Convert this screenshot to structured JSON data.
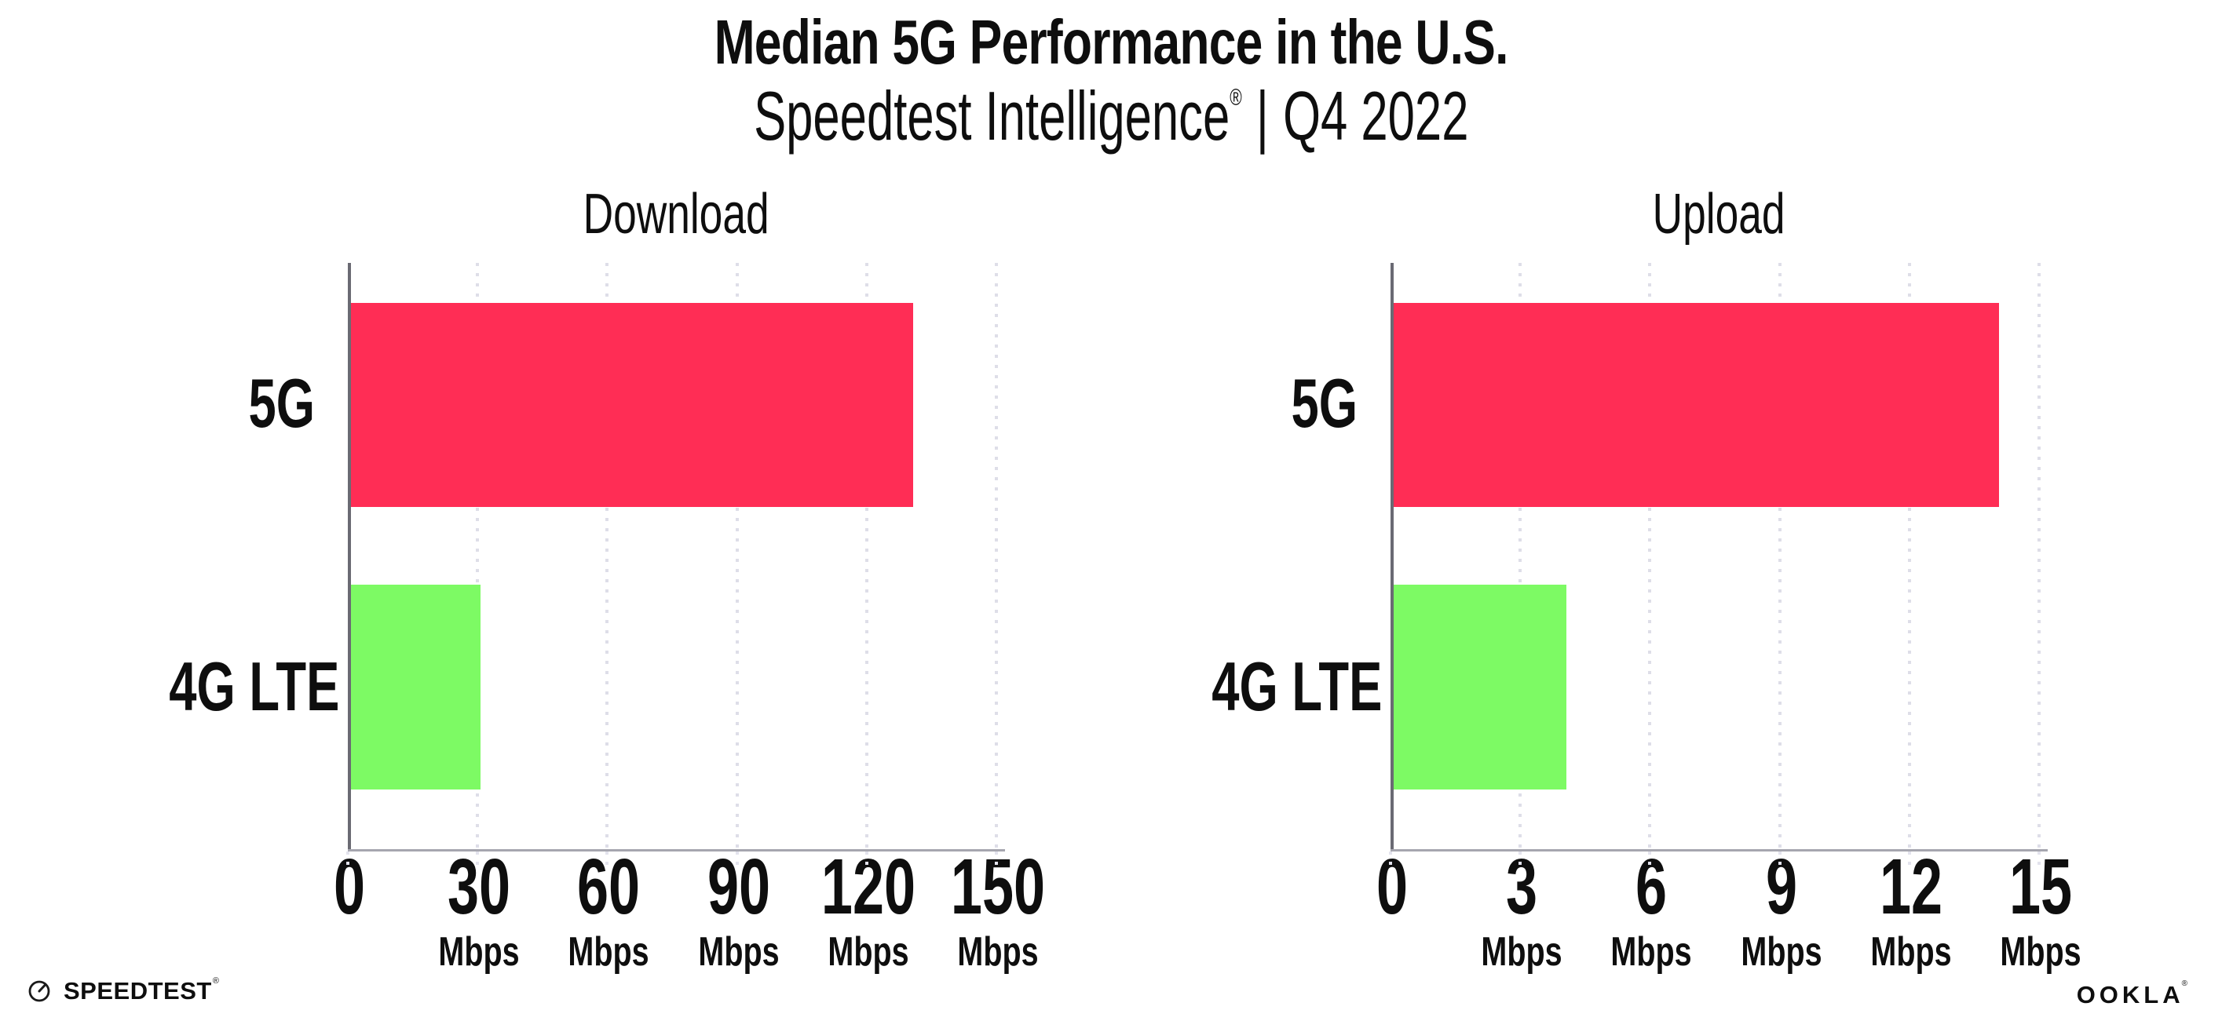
{
  "header": {
    "title": "Median 5G Performance in the U.S.",
    "subtitle_brand": "Speedtest Intelligence",
    "subtitle_reg": "®",
    "subtitle_sep": "|",
    "subtitle_period": "Q4 2022"
  },
  "chart_data": [
    {
      "type": "bar",
      "orientation": "horizontal",
      "title": "Download",
      "categories": [
        "5G",
        "4G LTE"
      ],
      "values": [
        130,
        30
      ],
      "unit": "Mbps",
      "tick_values": [
        0,
        30,
        60,
        90,
        120,
        150
      ],
      "xlim": [
        0,
        152
      ],
      "bar_colors": [
        "#FF2D55",
        "#7DFA64"
      ],
      "grid": "dotted-vertical"
    },
    {
      "type": "bar",
      "orientation": "horizontal",
      "title": "Upload",
      "categories": [
        "5G",
        "4G LTE"
      ],
      "values": [
        14,
        4
      ],
      "unit": "Mbps",
      "tick_values": [
        0,
        3,
        6,
        9,
        12,
        15
      ],
      "xlim": [
        0,
        15.2
      ],
      "bar_colors": [
        "#FF2D55",
        "#7DFA64"
      ],
      "grid": "dotted-vertical"
    }
  ],
  "footer": {
    "speedtest_label": "SPEEDTEST",
    "speedtest_reg": "®",
    "ookla_label": "OOKLA",
    "ookla_reg": "®"
  }
}
